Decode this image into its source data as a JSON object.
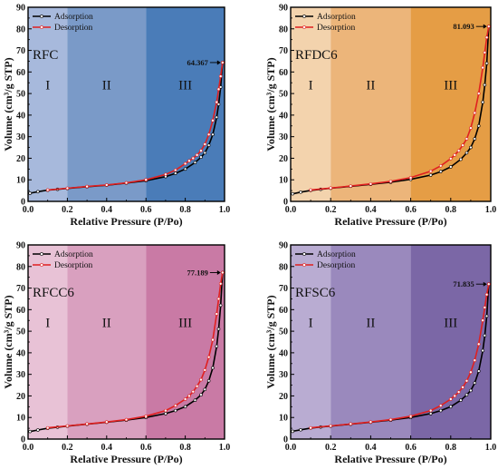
{
  "chart_data": [
    {
      "type": "line",
      "label": "RFC",
      "xlabel": "Relative Pressure (P/Po)",
      "ylabel": "Volume (cm³/g STP)",
      "xlim": [
        0,
        1.0
      ],
      "ylim": [
        0,
        90
      ],
      "xticks": [
        "0.0",
        "0.2",
        "0.4",
        "0.6",
        "0.8",
        "1.0"
      ],
      "yticks": [
        "0",
        "10",
        "20",
        "30",
        "40",
        "50",
        "60",
        "70",
        "80",
        "90"
      ],
      "legend": {
        "position": "top-left",
        "entries": [
          "Adsorption",
          "Desorption"
        ]
      },
      "regions": [
        {
          "label": "I",
          "from": 0,
          "to": 0.2,
          "color": "#a7b9dc"
        },
        {
          "label": "II",
          "from": 0.2,
          "to": 0.6,
          "color": "#7a9ac8"
        },
        {
          "label": "III",
          "from": 0.6,
          "to": 1.0,
          "color": "#4a7cb8"
        }
      ],
      "peak_label": "64.367",
      "peak_x": 0.99,
      "peak_y": 64.367,
      "series": [
        {
          "name": "Adsorption",
          "color": "#000000",
          "x": [
            0.01,
            0.05,
            0.1,
            0.15,
            0.2,
            0.3,
            0.4,
            0.5,
            0.6,
            0.7,
            0.75,
            0.8,
            0.85,
            0.88,
            0.9,
            0.92,
            0.94,
            0.96,
            0.97,
            0.98,
            0.99
          ],
          "y": [
            3.8,
            4.5,
            5.2,
            5.6,
            6.0,
            6.8,
            7.5,
            8.5,
            9.6,
            11.5,
            13.0,
            15.0,
            18.0,
            20.5,
            22.5,
            26.0,
            31.0,
            39.0,
            45.0,
            53.0,
            64.367
          ]
        },
        {
          "name": "Desorption",
          "color": "#e02020",
          "x": [
            0.99,
            0.98,
            0.97,
            0.96,
            0.94,
            0.92,
            0.9,
            0.88,
            0.86,
            0.84,
            0.82,
            0.8,
            0.75,
            0.7,
            0.6,
            0.5,
            0.4,
            0.3,
            0.2,
            0.1
          ],
          "y": [
            64.367,
            58.0,
            52.0,
            46.0,
            37.5,
            31.0,
            26.5,
            23.5,
            21.5,
            20.0,
            18.8,
            17.5,
            14.5,
            12.5,
            10.0,
            8.6,
            7.6,
            6.9,
            6.1,
            5.3
          ]
        }
      ]
    },
    {
      "type": "line",
      "label": "RFDC6",
      "xlabel": "Relative Pressure (P/Po)",
      "ylabel": "Volume (cm³/g STP)",
      "xlim": [
        0,
        1.0
      ],
      "ylim": [
        0,
        90
      ],
      "xticks": [
        "0.0",
        "0.2",
        "0.4",
        "0.6",
        "0.8",
        "1.0"
      ],
      "yticks": [
        "0",
        "10",
        "20",
        "30",
        "40",
        "50",
        "60",
        "70",
        "80",
        "90"
      ],
      "legend": {
        "position": "top-left",
        "entries": [
          "Adsorption",
          "Desorption"
        ]
      },
      "regions": [
        {
          "label": "I",
          "from": 0,
          "to": 0.2,
          "color": "#f3d3ad"
        },
        {
          "label": "II",
          "from": 0.2,
          "to": 0.6,
          "color": "#ecb57a"
        },
        {
          "label": "III",
          "from": 0.6,
          "to": 1.0,
          "color": "#e59d45"
        }
      ],
      "peak_label": "81.093",
      "peak_x": 0.99,
      "peak_y": 81.093,
      "series": [
        {
          "name": "Adsorption",
          "color": "#000000",
          "x": [
            0.01,
            0.05,
            0.1,
            0.15,
            0.2,
            0.3,
            0.4,
            0.5,
            0.6,
            0.7,
            0.75,
            0.8,
            0.85,
            0.88,
            0.9,
            0.92,
            0.94,
            0.96,
            0.97,
            0.98,
            0.99
          ],
          "y": [
            3.5,
            4.3,
            5.1,
            5.6,
            6.1,
            7.0,
            7.9,
            8.9,
            10.2,
            12.2,
            13.8,
            16.0,
            19.5,
            22.5,
            25.0,
            29.0,
            35.0,
            46.0,
            54.0,
            64.0,
            81.093
          ]
        },
        {
          "name": "Desorption",
          "color": "#e02020",
          "x": [
            0.99,
            0.98,
            0.97,
            0.96,
            0.94,
            0.92,
            0.9,
            0.88,
            0.86,
            0.84,
            0.82,
            0.8,
            0.75,
            0.7,
            0.6,
            0.5,
            0.4,
            0.3,
            0.2,
            0.1
          ],
          "y": [
            81.093,
            76.0,
            69.0,
            62.0,
            50.0,
            41.0,
            34.0,
            29.0,
            26.0,
            23.5,
            21.5,
            19.8,
            16.5,
            14.0,
            11.0,
            9.3,
            8.1,
            7.1,
            6.2,
            5.3
          ]
        }
      ]
    },
    {
      "type": "line",
      "label": "RFCC6",
      "xlabel": "Relative Pressure (P/Po)",
      "ylabel": "Volume (cm³/g STP)",
      "xlim": [
        0,
        1.0
      ],
      "ylim": [
        0,
        90
      ],
      "xticks": [
        "0.0",
        "0.2",
        "0.4",
        "0.6",
        "0.8",
        "1.0"
      ],
      "yticks": [
        "0",
        "10",
        "20",
        "30",
        "40",
        "50",
        "60",
        "70",
        "80",
        "90"
      ],
      "legend": {
        "position": "top-left",
        "entries": [
          "Adsorption",
          "Desorption"
        ]
      },
      "regions": [
        {
          "label": "I",
          "from": 0,
          "to": 0.2,
          "color": "#e8c2d6"
        },
        {
          "label": "II",
          "from": 0.2,
          "to": 0.6,
          "color": "#d9a0bf"
        },
        {
          "label": "III",
          "from": 0.6,
          "to": 1.0,
          "color": "#c97aa5"
        }
      ],
      "peak_label": "77.189",
      "peak_x": 0.99,
      "peak_y": 77.189,
      "series": [
        {
          "name": "Adsorption",
          "color": "#000000",
          "x": [
            0.01,
            0.05,
            0.1,
            0.15,
            0.2,
            0.3,
            0.4,
            0.5,
            0.6,
            0.7,
            0.75,
            0.8,
            0.85,
            0.88,
            0.9,
            0.92,
            0.94,
            0.96,
            0.97,
            0.98,
            0.99
          ],
          "y": [
            3.5,
            4.2,
            5.0,
            5.5,
            6.0,
            6.9,
            7.8,
            8.8,
            10.0,
            11.8,
            13.2,
            15.0,
            18.0,
            20.5,
            23.0,
            27.0,
            33.0,
            43.0,
            51.0,
            62.0,
            77.189
          ]
        },
        {
          "name": "Desorption",
          "color": "#e02020",
          "x": [
            0.99,
            0.98,
            0.97,
            0.96,
            0.94,
            0.92,
            0.9,
            0.88,
            0.86,
            0.84,
            0.82,
            0.8,
            0.75,
            0.7,
            0.6,
            0.5,
            0.4,
            0.3,
            0.2,
            0.1
          ],
          "y": [
            77.189,
            72.0,
            65.0,
            58.0,
            46.0,
            38.0,
            32.0,
            27.5,
            24.5,
            22.0,
            20.0,
            18.5,
            15.5,
            13.2,
            10.6,
            9.0,
            7.9,
            7.0,
            6.1,
            5.2
          ]
        }
      ]
    },
    {
      "type": "line",
      "label": "RFSC6",
      "xlabel": "Relative Pressure (P/Po)",
      "ylabel": "Volume (cm³/g STP)",
      "xlim": [
        0,
        1.0
      ],
      "ylim": [
        0,
        90
      ],
      "xticks": [
        "0.0",
        "0.2",
        "0.4",
        "0.6",
        "0.8",
        "1.0"
      ],
      "yticks": [
        "0",
        "10",
        "20",
        "30",
        "40",
        "50",
        "60",
        "70",
        "80",
        "90"
      ],
      "legend": {
        "position": "top-left",
        "entries": [
          "Adsorption",
          "Desorption"
        ]
      },
      "regions": [
        {
          "label": "I",
          "from": 0,
          "to": 0.2,
          "color": "#b9acd2"
        },
        {
          "label": "II",
          "from": 0.2,
          "to": 0.6,
          "color": "#9a89bd"
        },
        {
          "label": "III",
          "from": 0.6,
          "to": 1.0,
          "color": "#7b67a6"
        }
      ],
      "peak_label": "71.835",
      "peak_x": 0.99,
      "peak_y": 71.835,
      "series": [
        {
          "name": "Adsorption",
          "color": "#000000",
          "x": [
            0.01,
            0.05,
            0.1,
            0.15,
            0.2,
            0.3,
            0.4,
            0.5,
            0.6,
            0.7,
            0.75,
            0.8,
            0.85,
            0.88,
            0.9,
            0.92,
            0.94,
            0.96,
            0.97,
            0.98,
            0.99
          ],
          "y": [
            3.6,
            4.3,
            5.1,
            5.6,
            6.0,
            6.9,
            7.8,
            8.8,
            10.0,
            11.8,
            13.2,
            15.0,
            18.0,
            20.5,
            22.5,
            26.0,
            31.5,
            41.0,
            48.0,
            57.0,
            71.835
          ]
        },
        {
          "name": "Desorption",
          "color": "#e02020",
          "x": [
            0.99,
            0.98,
            0.97,
            0.96,
            0.94,
            0.92,
            0.9,
            0.88,
            0.86,
            0.84,
            0.82,
            0.8,
            0.75,
            0.7,
            0.6,
            0.5,
            0.4,
            0.3,
            0.2,
            0.1
          ],
          "y": [
            71.835,
            67.0,
            61.0,
            55.0,
            44.0,
            36.5,
            31.0,
            27.0,
            24.0,
            21.8,
            20.0,
            18.5,
            15.5,
            13.2,
            10.6,
            9.0,
            7.9,
            7.0,
            6.1,
            5.2
          ]
        }
      ]
    }
  ]
}
